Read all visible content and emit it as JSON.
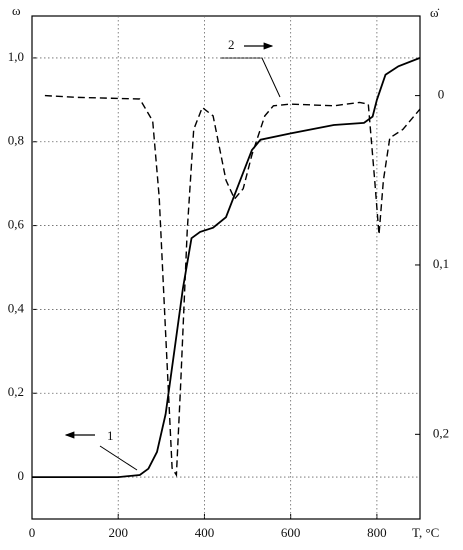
{
  "chart_data": {
    "type": "line",
    "y_label": "ω",
    "y2_label": "ω̇",
    "x_label": "T, °C",
    "xlim": [
      0,
      900
    ],
    "xticks": [
      0,
      200,
      400,
      600,
      800
    ],
    "ylim": [
      -0.1,
      1.1
    ],
    "yticks": [
      0,
      {
        "value": 0.2,
        "label": "0,2"
      },
      {
        "value": 0.4,
        "label": "0,4"
      },
      {
        "value": 0.6,
        "label": "0,6"
      },
      {
        "value": 0.8,
        "label": "0,8"
      },
      {
        "value": 1.0,
        "label": "1,0"
      }
    ],
    "y2lim": [
      0.25,
      -0.047
    ],
    "y2ticks": [
      0,
      {
        "value": 0.1,
        "label": "0,1"
      },
      {
        "value": 0.2,
        "label": "0,2"
      }
    ],
    "grid": true,
    "series": [
      {
        "name": "1",
        "color": "#000000",
        "dash": false,
        "axis": "y",
        "x": [
          0,
          200,
          250,
          270,
          290,
          310,
          330,
          350,
          370,
          390,
          420,
          450,
          480,
          510,
          530,
          600,
          700,
          770,
          790,
          800,
          820,
          850,
          900
        ],
        "values": [
          0,
          0,
          0.005,
          0.02,
          0.06,
          0.15,
          0.3,
          0.45,
          0.57,
          0.585,
          0.595,
          0.62,
          0.7,
          0.78,
          0.805,
          0.82,
          0.84,
          0.845,
          0.86,
          0.9,
          0.96,
          0.98,
          1.0
        ]
      },
      {
        "name": "2",
        "color": "#000000",
        "dash": true,
        "axis": "y2",
        "x": [
          30,
          100,
          250,
          280,
          295,
          310,
          325,
          335,
          345,
          360,
          375,
          395,
          420,
          450,
          470,
          490,
          510,
          540,
          560,
          600,
          700,
          760,
          780,
          795,
          805,
          815,
          830,
          860,
          900
        ],
        "values": [
          0,
          0.001,
          0.002,
          0.015,
          0.06,
          0.14,
          0.22,
          0.224,
          0.17,
          0.08,
          0.02,
          0.007,
          0.012,
          0.05,
          0.061,
          0.055,
          0.035,
          0.012,
          0.006,
          0.005,
          0.006,
          0.004,
          0.005,
          0.05,
          0.082,
          0.05,
          0.025,
          0.02,
          0.008
        ]
      }
    ]
  }
}
